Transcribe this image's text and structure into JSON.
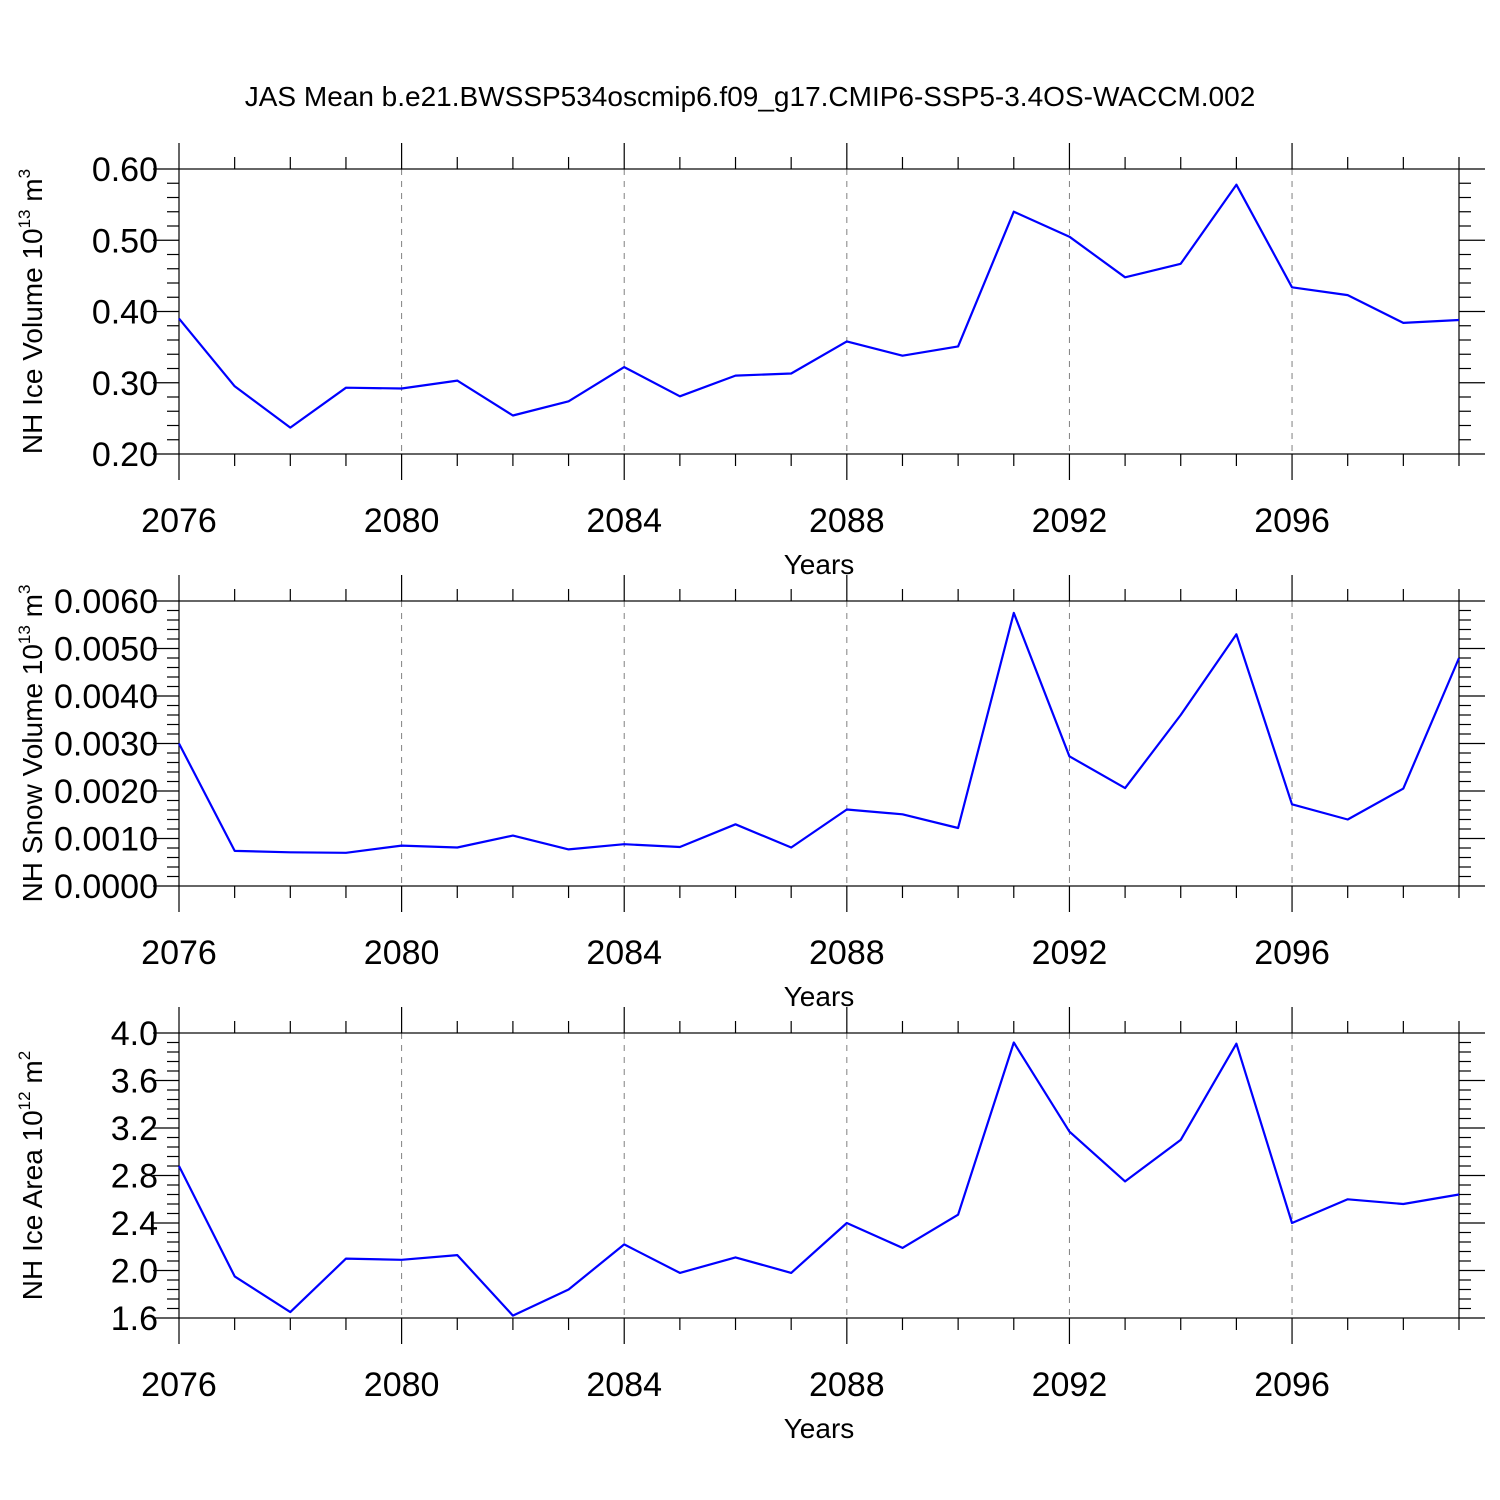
{
  "title": "JAS Mean b.e21.BWSSP534oscmip6.f09_g17.CMIP6-SSP5-3.4OS-WACCM.002",
  "colors": {
    "line": "#0000ff",
    "axes": "#000000",
    "grid": "#808080"
  },
  "chart_data": [
    {
      "type": "line",
      "xlabel": "Years",
      "ylabel_parts": [
        "NH Ice Volume 10",
        "13",
        " m",
        "3"
      ],
      "xlim": [
        2076,
        2099
      ],
      "ylim": [
        0.2,
        0.6
      ],
      "xticks": [
        2076,
        2080,
        2084,
        2088,
        2092,
        2096
      ],
      "xtick_labels": [
        "2076",
        "2080",
        "2084",
        "2088",
        "2092",
        "2096"
      ],
      "yticks": [
        0.2,
        0.3,
        0.4,
        0.5,
        0.6
      ],
      "ytick_labels": [
        "0.20",
        "0.30",
        "0.40",
        "0.50",
        "0.60"
      ],
      "grid_x": "dashed",
      "x": [
        2076,
        2077,
        2078,
        2079,
        2080,
        2081,
        2082,
        2083,
        2084,
        2085,
        2086,
        2087,
        2088,
        2089,
        2090,
        2091,
        2092,
        2093,
        2094,
        2095,
        2096,
        2097,
        2098,
        2099
      ],
      "y": [
        0.39,
        0.295,
        0.237,
        0.293,
        0.292,
        0.303,
        0.254,
        0.274,
        0.322,
        0.281,
        0.31,
        0.313,
        0.358,
        0.338,
        0.351,
        0.54,
        0.505,
        0.448,
        0.467,
        0.578,
        0.434,
        0.423,
        0.384,
        0.388
      ]
    },
    {
      "type": "line",
      "xlabel": "Years",
      "ylabel_parts": [
        "NH Snow Volume 10",
        "13",
        " m",
        "3"
      ],
      "xlim": [
        2076,
        2099
      ],
      "ylim": [
        0,
        0.006
      ],
      "xticks": [
        2076,
        2080,
        2084,
        2088,
        2092,
        2096
      ],
      "xtick_labels": [
        "2076",
        "2080",
        "2084",
        "2088",
        "2092",
        "2096"
      ],
      "yticks": [
        0,
        0.001,
        0.002,
        0.003,
        0.004,
        0.005,
        0.006
      ],
      "ytick_labels": [
        "0.0000",
        "0.0010",
        "0.0020",
        "0.0030",
        "0.0040",
        "0.0050",
        "0.0060"
      ],
      "grid_x": "dashed",
      "x": [
        2076,
        2077,
        2078,
        2079,
        2080,
        2081,
        2082,
        2083,
        2084,
        2085,
        2086,
        2087,
        2088,
        2089,
        2090,
        2091,
        2092,
        2093,
        2094,
        2095,
        2096,
        2097,
        2098,
        2099
      ],
      "y": [
        0.003,
        0.00074,
        0.00071,
        0.0007,
        0.00085,
        0.00081,
        0.00106,
        0.00077,
        0.00088,
        0.00082,
        0.0013,
        0.00081,
        0.00161,
        0.00151,
        0.00122,
        0.00575,
        0.00273,
        0.00206,
        0.0036,
        0.0053,
        0.00172,
        0.0014,
        0.00205,
        0.0048
      ]
    },
    {
      "type": "line",
      "xlabel": "Years",
      "ylabel_parts": [
        "NH Ice Area 10",
        "12",
        " m",
        "2"
      ],
      "xlim": [
        2076,
        2099
      ],
      "ylim": [
        1.6,
        4.0
      ],
      "xticks": [
        2076,
        2080,
        2084,
        2088,
        2092,
        2096
      ],
      "xtick_labels": [
        "2076",
        "2080",
        "2084",
        "2088",
        "2092",
        "2096"
      ],
      "yticks": [
        1.6,
        2.0,
        2.4,
        2.8,
        3.2,
        3.6,
        4.0
      ],
      "ytick_labels": [
        "1.6",
        "2.0",
        "2.4",
        "2.8",
        "3.2",
        "3.6",
        "4.0"
      ],
      "grid_x": "dashed",
      "x": [
        2076,
        2077,
        2078,
        2079,
        2080,
        2081,
        2082,
        2083,
        2084,
        2085,
        2086,
        2087,
        2088,
        2089,
        2090,
        2091,
        2092,
        2093,
        2094,
        2095,
        2096,
        2097,
        2098,
        2099
      ],
      "y": [
        2.88,
        1.95,
        1.65,
        2.1,
        2.09,
        2.13,
        1.62,
        1.84,
        2.22,
        1.98,
        2.11,
        1.98,
        2.4,
        2.19,
        2.47,
        3.92,
        3.17,
        2.75,
        3.1,
        3.91,
        2.4,
        2.6,
        2.56,
        2.64
      ]
    }
  ]
}
